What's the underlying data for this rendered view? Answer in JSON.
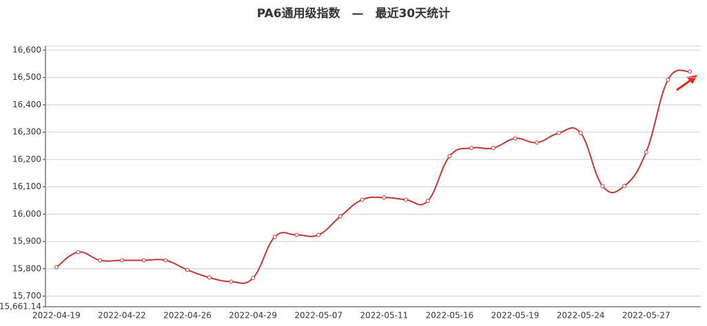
{
  "chart_data": {
    "type": "line",
    "title": "PA6通用级指数　—　最近30天统计",
    "categories": [
      "2022-04-19",
      null,
      null,
      "2022-04-22",
      null,
      null,
      "2022-04-26",
      null,
      null,
      "2022-04-29",
      null,
      null,
      "2022-05-07",
      null,
      null,
      "2022-05-11",
      null,
      null,
      "2022-05-16",
      null,
      null,
      "2022-05-19",
      null,
      null,
      "2022-05-24",
      null,
      null,
      "2022-05-27",
      null,
      null
    ],
    "series": [
      {
        "name": "PA6通用级指数",
        "color": "#c23531",
        "values": [
          15806,
          15861,
          15831,
          15831,
          15831,
          15831,
          15796,
          15768,
          15753,
          15766,
          15917,
          15924,
          15924,
          15992,
          16053,
          16061,
          16053,
          16048,
          16212,
          16242,
          16242,
          16277,
          16262,
          16297,
          16297,
          16103,
          16103,
          16227,
          16492,
          16522
        ]
      }
    ],
    "ylim": [
      15661.14,
      16600
    ],
    "yticks": [
      {
        "value": 15661.14,
        "label": "15,661.14"
      },
      {
        "value": 15700,
        "label": "15,700"
      },
      {
        "value": 15800,
        "label": "15,800"
      },
      {
        "value": 15900,
        "label": "15,900"
      },
      {
        "value": 16000,
        "label": "16,000"
      },
      {
        "value": 16100,
        "label": "16,100"
      },
      {
        "value": 16200,
        "label": "16,200"
      },
      {
        "value": 16300,
        "label": "16,300"
      },
      {
        "value": 16400,
        "label": "16,400"
      },
      {
        "value": 16500,
        "label": "16,500"
      },
      {
        "value": 16600,
        "label": "16,600"
      }
    ],
    "grid": true
  }
}
